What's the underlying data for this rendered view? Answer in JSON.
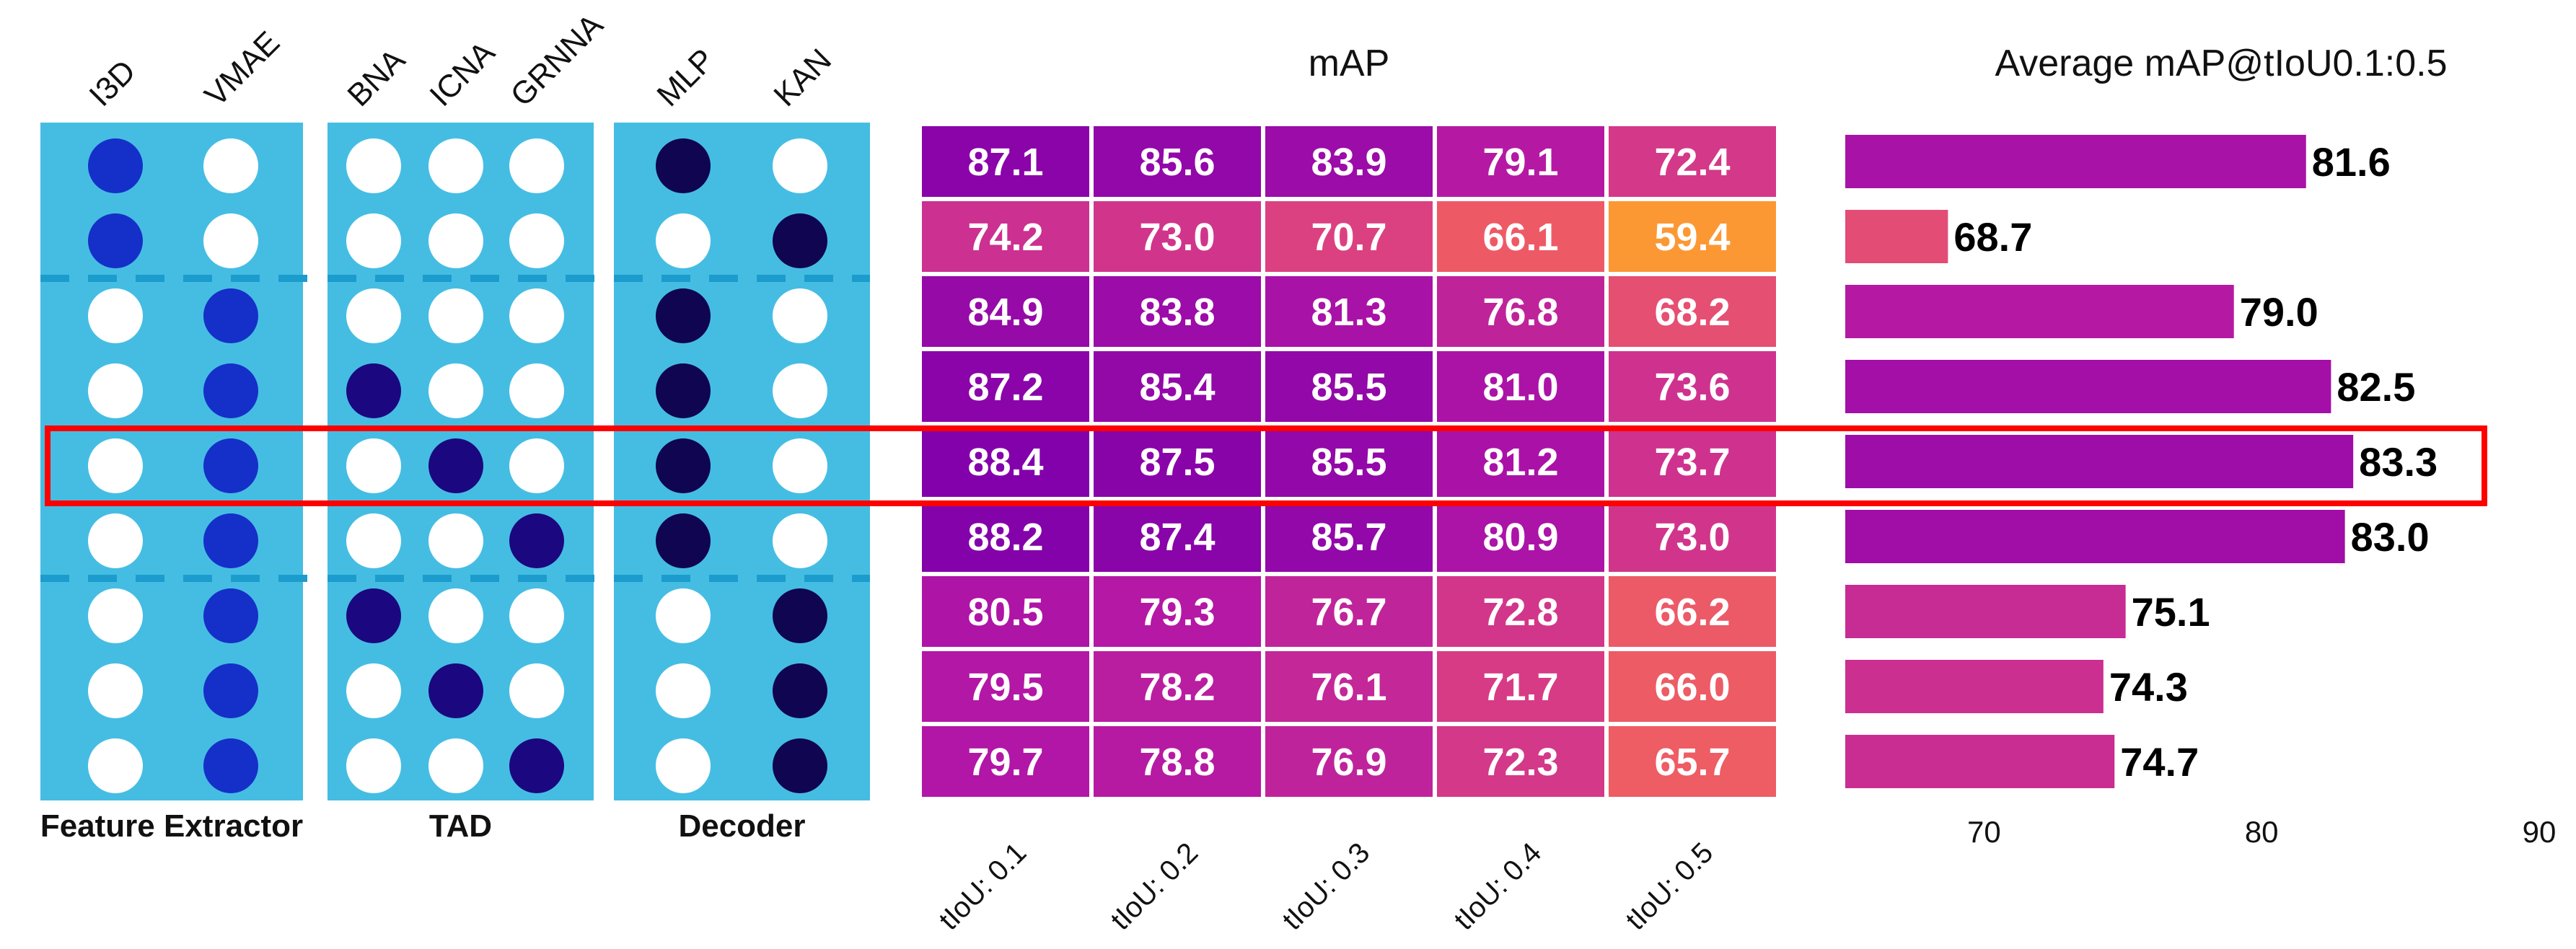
{
  "chart_data": [
    {
      "type": "table",
      "groups": [
        {
          "title": "Feature Extractor",
          "columns": [
            "I3D",
            "VMAE"
          ]
        },
        {
          "title": "TAD",
          "columns": [
            "BNA",
            "ICNA",
            "GRNNA"
          ]
        },
        {
          "title": "Decoder",
          "columns": [
            "MLP",
            "KAN"
          ]
        }
      ],
      "rows": [
        {
          "Feature Extractor": "I3D",
          "TAD": null,
          "Decoder": "MLP"
        },
        {
          "Feature Extractor": "I3D",
          "TAD": null,
          "Decoder": "KAN"
        },
        {
          "Feature Extractor": "VMAE",
          "TAD": null,
          "Decoder": "MLP"
        },
        {
          "Feature Extractor": "VMAE",
          "TAD": "BNA",
          "Decoder": "MLP"
        },
        {
          "Feature Extractor": "VMAE",
          "TAD": "ICNA",
          "Decoder": "MLP"
        },
        {
          "Feature Extractor": "VMAE",
          "TAD": "GRNNA",
          "Decoder": "MLP"
        },
        {
          "Feature Extractor": "VMAE",
          "TAD": "BNA",
          "Decoder": "KAN"
        },
        {
          "Feature Extractor": "VMAE",
          "TAD": "ICNA",
          "Decoder": "KAN"
        },
        {
          "Feature Extractor": "VMAE",
          "TAD": "GRNNA",
          "Decoder": "KAN"
        }
      ],
      "group_separators_after_rows": [
        2,
        6
      ],
      "highlighted_row": 5,
      "colors": {
        "panel": "#45BDE3",
        "divider": "#1B9CCD",
        "open": "#ffffff",
        "fill_feature": "#1530C8",
        "fill_tad": "#1B0880",
        "fill_decoder": "#0F0550",
        "highlight": "#FF0000"
      }
    },
    {
      "type": "heatmap",
      "title": "mAP",
      "columns": [
        "tIoU: 0.1",
        "tIoU: 0.2",
        "tIoU: 0.3",
        "tIoU: 0.4",
        "tIoU: 0.5"
      ],
      "values": [
        [
          "87.1",
          "85.6",
          "83.9",
          "79.1",
          "72.4"
        ],
        [
          "74.2",
          "73.0",
          "70.7",
          "66.1",
          "59.4"
        ],
        [
          "84.9",
          "83.8",
          "81.3",
          "76.8",
          "68.2"
        ],
        [
          "87.2",
          "85.4",
          "85.5",
          "81.0",
          "73.6"
        ],
        [
          "88.4",
          "87.5",
          "85.5",
          "81.2",
          "73.7"
        ],
        [
          "88.2",
          "87.4",
          "85.7",
          "80.9",
          "73.0"
        ],
        [
          "80.5",
          "79.3",
          "76.7",
          "72.8",
          "66.2"
        ],
        [
          "79.5",
          "78.2",
          "76.1",
          "71.7",
          "66.0"
        ],
        [
          "79.7",
          "78.8",
          "76.9",
          "72.3",
          "65.7"
        ]
      ],
      "colormap": "plasma"
    },
    {
      "type": "bar",
      "orientation": "horizontal",
      "title": "Average mAP@tIoU0.1:0.5",
      "values": [
        "81.6",
        "68.7",
        "79.0",
        "82.5",
        "83.3",
        "83.0",
        "75.1",
        "74.3",
        "74.7"
      ],
      "xlim": [
        65,
        90
      ],
      "xticks": [
        "70",
        "80",
        "90"
      ],
      "colormap": "plasma"
    }
  ]
}
